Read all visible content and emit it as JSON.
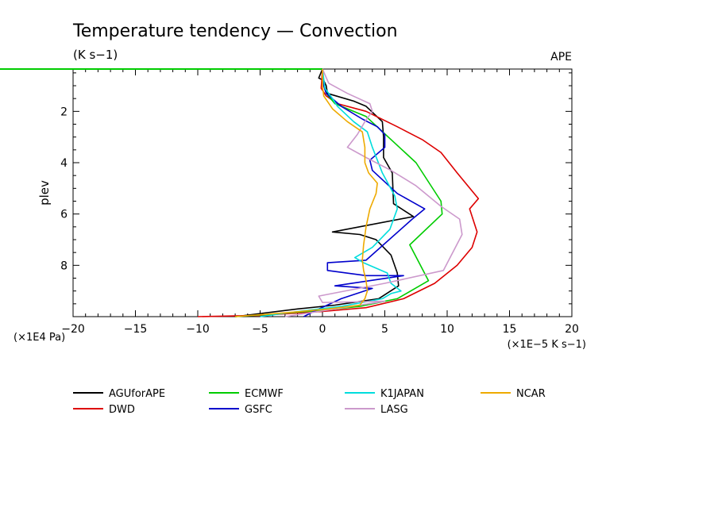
{
  "chart_data": {
    "type": "line",
    "title": "Temperature tendency — Convection",
    "subtitle": "(K s−1)",
    "experiment": "APE",
    "xlabel": "(×1E−5 K s−1)",
    "ylabel": "plev",
    "yunit": "(×1E4 Pa)",
    "xlim": [
      -20,
      20
    ],
    "ylim": [
      10,
      0.35
    ],
    "xticks": [
      -20,
      -15,
      -10,
      -5,
      0,
      5,
      10,
      15,
      20
    ],
    "xtick_labels": [
      "−20",
      "−15",
      "−10",
      "−5",
      "0",
      "5",
      "10",
      "15",
      "20"
    ],
    "yticks": [
      2,
      4,
      6,
      8
    ],
    "ytick_labels": [
      "2",
      "4",
      "6",
      "8"
    ],
    "grid": false,
    "legend_position": "bottom",
    "series": [
      {
        "name": "AGUforAPE",
        "color": "#000000",
        "x": [
          0,
          -0.3,
          0.1,
          0.3,
          0.4,
          2.5,
          3.5,
          4.8,
          4.9,
          4.9,
          5.6,
          5.7,
          7.3,
          0.8,
          3.0,
          4.3,
          5.5,
          6.0,
          6.1,
          4.5,
          1.0,
          -2.0,
          -7.0
        ],
        "y": [
          0.35,
          0.7,
          0.8,
          1.0,
          1.3,
          1.6,
          1.8,
          2.4,
          3.0,
          3.8,
          4.4,
          5.6,
          6.1,
          6.7,
          6.8,
          7.0,
          7.6,
          8.3,
          8.8,
          9.3,
          9.55,
          9.7,
          10.0
        ]
      },
      {
        "name": "DWD",
        "color": "#dd0000",
        "x": [
          0,
          -0.1,
          0.3,
          1.2,
          3.5,
          6.0,
          8.0,
          9.5,
          10.8,
          12.5,
          11.8,
          12.4,
          12.0,
          10.8,
          9.0,
          6.5,
          3.5,
          0,
          -5,
          -10
        ],
        "y": [
          0.35,
          1.1,
          1.4,
          1.7,
          2.0,
          2.6,
          3.1,
          3.6,
          4.4,
          5.4,
          5.8,
          6.7,
          7.3,
          8.0,
          8.7,
          9.3,
          9.65,
          9.8,
          9.95,
          10.0
        ]
      },
      {
        "name": "ECMWF",
        "color": "#00cc00",
        "x": [
          0,
          0.1,
          0.3,
          1.0,
          3.5,
          7.5,
          9.5,
          9.6,
          7.0,
          8.5,
          6.0,
          3.0,
          0,
          -4.0,
          -7.0
        ],
        "y": [
          0.35,
          0.9,
          1.3,
          1.7,
          2.2,
          4.0,
          5.5,
          6.0,
          7.2,
          8.6,
          9.3,
          9.6,
          9.75,
          9.9,
          10.0
        ]
      },
      {
        "name": "GSFC",
        "color": "#0000cc",
        "x": [
          0,
          0.1,
          0.3,
          1.5,
          3.2,
          4.4,
          5.0,
          5.0,
          3.8,
          4.0,
          6.0,
          8.2,
          7.2,
          3.5,
          0.4,
          0.4,
          3.5,
          6.5,
          1.0,
          4.0,
          1.5,
          -0.5,
          -1.5
        ],
        "y": [
          0.35,
          1.0,
          1.3,
          1.8,
          2.3,
          2.6,
          2.9,
          3.4,
          3.9,
          4.3,
          5.2,
          5.8,
          6.2,
          7.8,
          7.9,
          8.2,
          8.4,
          8.4,
          8.8,
          8.9,
          9.3,
          9.75,
          10.0
        ]
      },
      {
        "name": "K1JAPAN",
        "color": "#00dddd",
        "x": [
          0,
          0.2,
          0.8,
          1.2,
          2.5,
          3.6,
          4.0,
          4.8,
          5.8,
          6.0,
          5.4,
          4.0,
          2.6,
          3.3,
          5.2,
          5.5,
          6.3,
          5.5,
          4.8,
          1.5,
          -2.0,
          -5.0
        ],
        "y": [
          0.35,
          1.1,
          1.5,
          1.8,
          2.4,
          2.8,
          3.4,
          4.4,
          5.3,
          5.8,
          6.6,
          7.3,
          7.7,
          7.9,
          8.3,
          8.7,
          9.0,
          9.1,
          9.3,
          9.6,
          9.8,
          10.0
        ]
      },
      {
        "name": "LASG",
        "color": "#cc99cc",
        "x": [
          0,
          0.5,
          2.0,
          3.8,
          4.0,
          3.4,
          2.8,
          2.0,
          3.5,
          5.5,
          7.5,
          9.5,
          11.0,
          11.2,
          9.7,
          5.0,
          -0.3,
          0.0,
          5.0,
          1.0,
          -3.0
        ],
        "y": [
          0.35,
          0.9,
          1.3,
          1.7,
          2.0,
          2.4,
          2.9,
          3.4,
          3.8,
          4.3,
          4.9,
          5.7,
          6.2,
          6.8,
          8.2,
          8.7,
          9.2,
          9.45,
          9.4,
          9.7,
          10.0
        ]
      },
      {
        "name": "NCAR",
        "color": "#eeaa00",
        "x": [
          0,
          0.0,
          0.1,
          0.8,
          2.0,
          3.2,
          3.4,
          3.4,
          3.7,
          4.4,
          4.3,
          3.8,
          3.5,
          3.3,
          3.2,
          3.3,
          3.5,
          3.6,
          3.4,
          3.0,
          0.5,
          -3.0,
          -7.0
        ],
        "y": [
          0.35,
          1.0,
          1.4,
          1.9,
          2.4,
          2.8,
          3.4,
          4.0,
          4.4,
          4.8,
          5.2,
          5.8,
          6.5,
          7.2,
          7.8,
          8.2,
          8.6,
          9.0,
          9.3,
          9.55,
          9.7,
          9.85,
          10.0
        ]
      }
    ],
    "reference_line": {
      "color": "#00cc00",
      "x_start": -20,
      "x_end": 0,
      "y": 0.35,
      "x_start_data_overflow": -32
    }
  }
}
